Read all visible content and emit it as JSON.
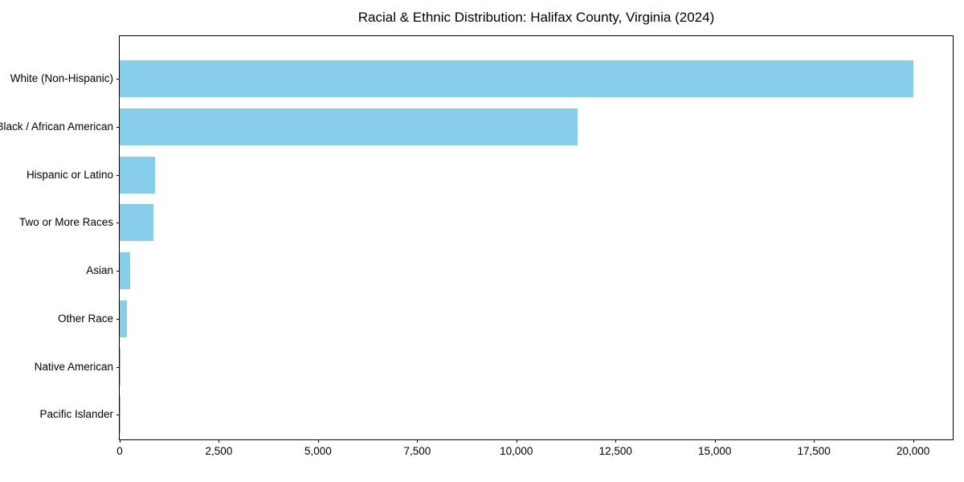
{
  "chart_data": {
    "type": "bar",
    "orientation": "horizontal",
    "title": "Racial & Ethnic Distribution: Halifax County, Virginia (2024)",
    "categories": [
      "White (Non-Hispanic)",
      "Black / African American",
      "Hispanic or Latino",
      "Two or More Races",
      "Asian",
      "Other Race",
      "Native American",
      "Pacific Islander"
    ],
    "values": [
      20000,
      11550,
      890,
      850,
      255,
      190,
      30,
      8
    ],
    "xlabel": "",
    "ylabel": "",
    "xlim": [
      0,
      21000
    ],
    "x_ticks": [
      0,
      2500,
      5000,
      7500,
      10000,
      12500,
      15000,
      17500,
      20000
    ],
    "x_tick_labels": [
      "0",
      "2,500",
      "5,000",
      "7,500",
      "10,000",
      "12,500",
      "15,000",
      "17,500",
      "20,000"
    ],
    "bar_color": "#87CEEB",
    "background_color": "#ffffff",
    "grid": false,
    "legend": null
  }
}
